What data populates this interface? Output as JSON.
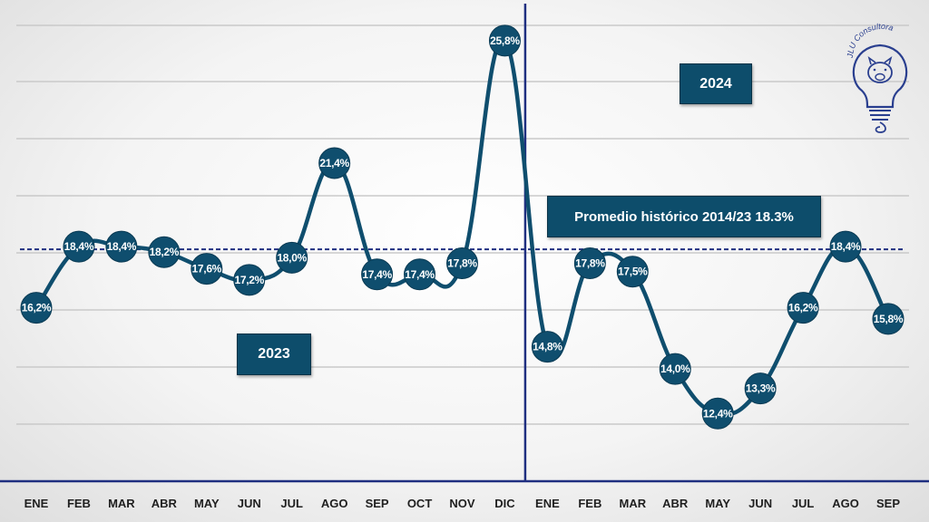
{
  "chart_data": {
    "type": "line",
    "categories": [
      "ENE",
      "FEB",
      "MAR",
      "ABR",
      "MAY",
      "JUN",
      "JUL",
      "AGO",
      "SEP",
      "OCT",
      "NOV",
      "DIC",
      "ENE",
      "FEB",
      "MAR",
      "ABR",
      "MAY",
      "JUN",
      "JUL",
      "AGO",
      "SEP"
    ],
    "series": [
      {
        "values": [
          16.2,
          18.4,
          18.4,
          18.2,
          17.6,
          17.2,
          18.0,
          21.4,
          17.4,
          17.4,
          17.8,
          25.8,
          14.8,
          17.8,
          17.5,
          14.0,
          12.4,
          13.3,
          16.2,
          18.4,
          15.8
        ],
        "labels": [
          "16,2%",
          "18,4%",
          "18,4%",
          "18,2%",
          "17,6%",
          "17,2%",
          "18,0%",
          "21,4%",
          "17,4%",
          "17,4%",
          "17,8%",
          "25,8%",
          "14,8%",
          "17,8%",
          "17,5%",
          "14,0%",
          "12,4%",
          "13,3%",
          "16,2%",
          "18,4%",
          "15,8%"
        ]
      }
    ],
    "reference_line": {
      "value": 18.3,
      "style": "dashed"
    },
    "year_divider_after_index": 11,
    "ylim": [
      10,
      27
    ],
    "grid": true,
    "colors": {
      "line": "#0f4e6e",
      "marker": "#0f4e6e",
      "reference": "#1f2f80",
      "divider": "#1f2f80",
      "axis": "#1f2f80"
    }
  },
  "annotations": {
    "year_2023": "2023",
    "year_2024": "2024",
    "average": "Promedio histórico 2014/23  18.3%"
  },
  "logo": {
    "text": "JLU Consultora",
    "icon": "lightbulb-pig-icon"
  }
}
